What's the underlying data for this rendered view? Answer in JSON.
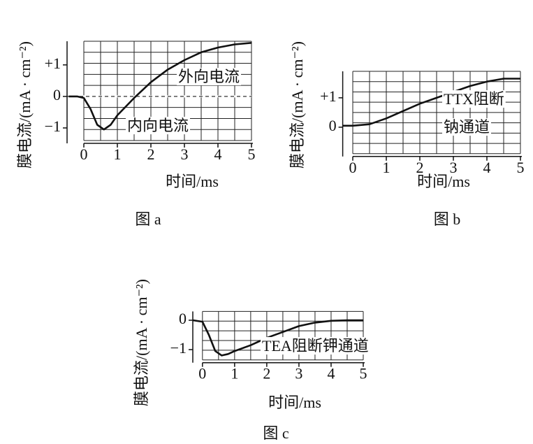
{
  "chart_data": [
    {
      "type": "line",
      "caption": "图 a",
      "ylabel": "膜电流/(mA · cm⁻²)",
      "xlabel": "时间/ms",
      "annotations": [
        "外向电流",
        "内向电流"
      ],
      "xlim": [
        -0.5,
        5
      ],
      "ylim": [
        -1.4,
        1.75
      ],
      "xticks": [
        0,
        1,
        2,
        3,
        4,
        5
      ],
      "yticks": [
        {
          "value": 1,
          "label": "+1"
        },
        0,
        {
          "value": -1,
          "label": "−1"
        }
      ],
      "grid": true,
      "zero_line": "dashed",
      "series": [
        {
          "color": "#111111",
          "x": [
            -0.45,
            -0.2,
            0,
            0.2,
            0.4,
            0.6,
            0.8,
            1.0,
            1.5,
            2.0,
            2.5,
            3.0,
            3.5,
            4.0,
            4.5,
            5.0
          ],
          "values": [
            0,
            0,
            -0.05,
            -0.4,
            -0.9,
            -1.05,
            -0.9,
            -0.6,
            -0.05,
            0.45,
            0.85,
            1.15,
            1.4,
            1.55,
            1.65,
            1.7
          ]
        }
      ]
    },
    {
      "type": "line",
      "caption": "图 b",
      "ylabel": "膜电流/(mA · cm⁻²)",
      "xlabel": "时间/ms",
      "annotations": [
        "TTX阻断",
        "钠通道"
      ],
      "xlim": [
        -0.3,
        5
      ],
      "ylim": [
        -0.9,
        1.9
      ],
      "xticks": [
        0,
        1,
        2,
        3,
        4,
        5
      ],
      "yticks": [
        {
          "value": 1,
          "label": "+1"
        },
        0
      ],
      "grid": true,
      "series": [
        {
          "color": "#111111",
          "x": [
            -0.3,
            0,
            0.5,
            1.0,
            1.5,
            2.0,
            2.5,
            3.0,
            3.5,
            4.0,
            4.5,
            5.0
          ],
          "values": [
            0.05,
            0.05,
            0.1,
            0.3,
            0.55,
            0.8,
            1.0,
            1.2,
            1.4,
            1.55,
            1.65,
            1.65
          ]
        }
      ]
    },
    {
      "type": "line",
      "caption": "图 c",
      "ylabel": "膜电流/(mA · cm⁻²)",
      "xlabel": "时间/ms",
      "annotations": [
        "TEA阻断钾通道"
      ],
      "xlim": [
        -0.3,
        5
      ],
      "ylim": [
        -1.35,
        0.3
      ],
      "xticks": [
        0,
        1,
        2,
        3,
        4,
        5
      ],
      "yticks": [
        0,
        {
          "value": -1,
          "label": "−1"
        }
      ],
      "grid": true,
      "series": [
        {
          "color": "#111111",
          "x": [
            -0.3,
            0,
            0.2,
            0.4,
            0.6,
            0.8,
            1.0,
            1.5,
            2.0,
            2.5,
            3.0,
            3.5,
            4.0,
            4.5,
            5.0
          ],
          "values": [
            0,
            -0.05,
            -0.5,
            -1.05,
            -1.2,
            -1.15,
            -1.05,
            -0.85,
            -0.6,
            -0.4,
            -0.2,
            -0.08,
            -0.02,
            0,
            0
          ]
        }
      ]
    }
  ]
}
